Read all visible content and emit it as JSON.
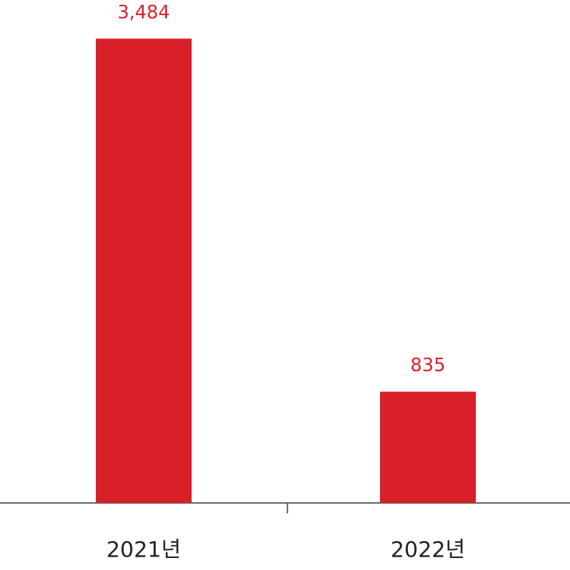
{
  "chart_data": {
    "type": "bar",
    "categories": [
      "2021년",
      "2022년"
    ],
    "values": [
      3484,
      835
    ],
    "value_labels": [
      "3,484",
      "835"
    ],
    "color": "#d92029",
    "ylim": [
      0,
      3600
    ]
  }
}
